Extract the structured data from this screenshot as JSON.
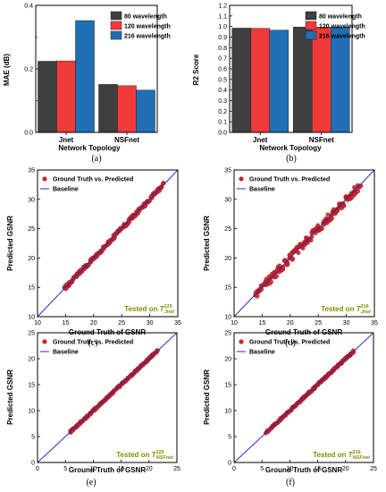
{
  "colors": {
    "wl80": "#3f3f3f",
    "wl120": "#f03a3a",
    "wl216": "#1f6fb4",
    "scatter": "#d42424",
    "scatter_edge": "#7a0a0a",
    "baseline": "#2a2ac0",
    "tested_text": "#8a8a00"
  },
  "chart_data": [
    {
      "panel": "(a)",
      "type": "bar",
      "xlabel": "Network Topology",
      "ylabel": "MAE (dB)",
      "categories": [
        "Jnet",
        "NSFnet"
      ],
      "ylim": [
        0,
        0.4
      ],
      "yticks": [
        "0.0",
        "0.2",
        "0.4"
      ],
      "legend_position": "top-right",
      "series": [
        {
          "name": "80 wavelength",
          "values": [
            0.224,
            0.151
          ]
        },
        {
          "name": "120 wavelength",
          "values": [
            0.225,
            0.147
          ]
        },
        {
          "name": "216 wavelength",
          "values": [
            0.352,
            0.133
          ]
        }
      ]
    },
    {
      "panel": "(b)",
      "type": "bar",
      "xlabel": "Network Topology",
      "ylabel": "R2 Score",
      "categories": [
        "Jnet",
        "NSFnet"
      ],
      "ylim": [
        0,
        1.2
      ],
      "yticks": [
        "0.0",
        "0.1",
        "0.2",
        "0.3",
        "0.4",
        "0.5",
        "0.6",
        "0.7",
        "0.8",
        "0.9",
        "1.0",
        "1.1",
        "1.2"
      ],
      "legend_position": "top-right",
      "series": [
        {
          "name": "80 wavelength",
          "values": [
            0.985,
            0.995
          ]
        },
        {
          "name": "120 wavelength",
          "values": [
            0.983,
            0.994
          ]
        },
        {
          "name": "216 wavelength",
          "values": [
            0.966,
            0.995
          ]
        }
      ]
    },
    {
      "panel": "(c)",
      "type": "scatter",
      "xlabel": "Ground Truth of GSNR",
      "ylabel": "Predicted GSNR",
      "xlim": [
        10,
        35
      ],
      "ylim": [
        10,
        35
      ],
      "xticks": [
        "10",
        "15",
        "20",
        "25",
        "30",
        "35"
      ],
      "yticks": [
        "10",
        "15",
        "20",
        "25",
        "30",
        "35"
      ],
      "series": [
        {
          "name": "Ground Truth vs. Predicted",
          "x_range": [
            14.8,
            32.5
          ],
          "spread": 0.35
        },
        {
          "name": "Baseline",
          "line": [
            [
              10,
              10
            ],
            [
              35,
              35
            ]
          ]
        }
      ],
      "annotation": {
        "prefix": "Tested on ",
        "symbol": "T",
        "sup": "120",
        "sub": "Jnet"
      }
    },
    {
      "panel": "(d)",
      "type": "scatter",
      "xlabel": "Ground Truth of GSNR",
      "ylabel": "Predicted GSNR",
      "xlim": [
        10,
        35
      ],
      "ylim": [
        10,
        35
      ],
      "xticks": [
        "10",
        "15",
        "20",
        "25",
        "30",
        "35"
      ],
      "yticks": [
        "10",
        "15",
        "20",
        "25",
        "30",
        "35"
      ],
      "series": [
        {
          "name": "Ground Truth vs. Predicted",
          "x_range": [
            13.8,
            32.5
          ],
          "spread": 0.7
        },
        {
          "name": "Baseline",
          "line": [
            [
              10,
              10
            ],
            [
              35,
              35
            ]
          ]
        }
      ],
      "annotation": {
        "prefix": "Tested on ",
        "symbol": "T",
        "sup": "216",
        "sub": "Jnet"
      }
    },
    {
      "panel": "(e)",
      "type": "scatter",
      "xlabel": "Ground Truth of GSNR",
      "ylabel": "Predicted GSNR",
      "xlim": [
        0,
        25
      ],
      "ylim": [
        0,
        25
      ],
      "xticks": [
        "0",
        "5",
        "10",
        "15",
        "20",
        "25"
      ],
      "yticks": [
        "0",
        "5",
        "10",
        "15",
        "20",
        "25"
      ],
      "series": [
        {
          "name": "Ground Truth vs. Predicted",
          "x_range": [
            5.8,
            21.5
          ],
          "spread": 0.2
        },
        {
          "name": "Baseline",
          "line": [
            [
              0,
              0
            ],
            [
              25,
              25
            ]
          ]
        }
      ],
      "annotation": {
        "prefix": "Tested on ",
        "symbol": "T",
        "sup": "120",
        "sub": "NSFnet"
      }
    },
    {
      "panel": "(f)",
      "type": "scatter",
      "xlabel": "Ground Truth of GSNR",
      "ylabel": "Predicted GSNR",
      "xlim": [
        0,
        25
      ],
      "ylim": [
        0,
        25
      ],
      "xticks": [
        "0",
        "5",
        "10",
        "15",
        "20",
        "25"
      ],
      "yticks": [
        "0",
        "5",
        "10",
        "15",
        "20",
        "25"
      ],
      "series": [
        {
          "name": "Ground Truth vs. Predicted",
          "x_range": [
            5.8,
            21.5
          ],
          "spread": 0.2
        },
        {
          "name": "Baseline",
          "line": [
            [
              0,
              0
            ],
            [
              25,
              25
            ]
          ]
        }
      ],
      "annotation": {
        "prefix": "Tested on ",
        "symbol": "T",
        "sup": "216",
        "sub": "NSFnet"
      }
    }
  ]
}
